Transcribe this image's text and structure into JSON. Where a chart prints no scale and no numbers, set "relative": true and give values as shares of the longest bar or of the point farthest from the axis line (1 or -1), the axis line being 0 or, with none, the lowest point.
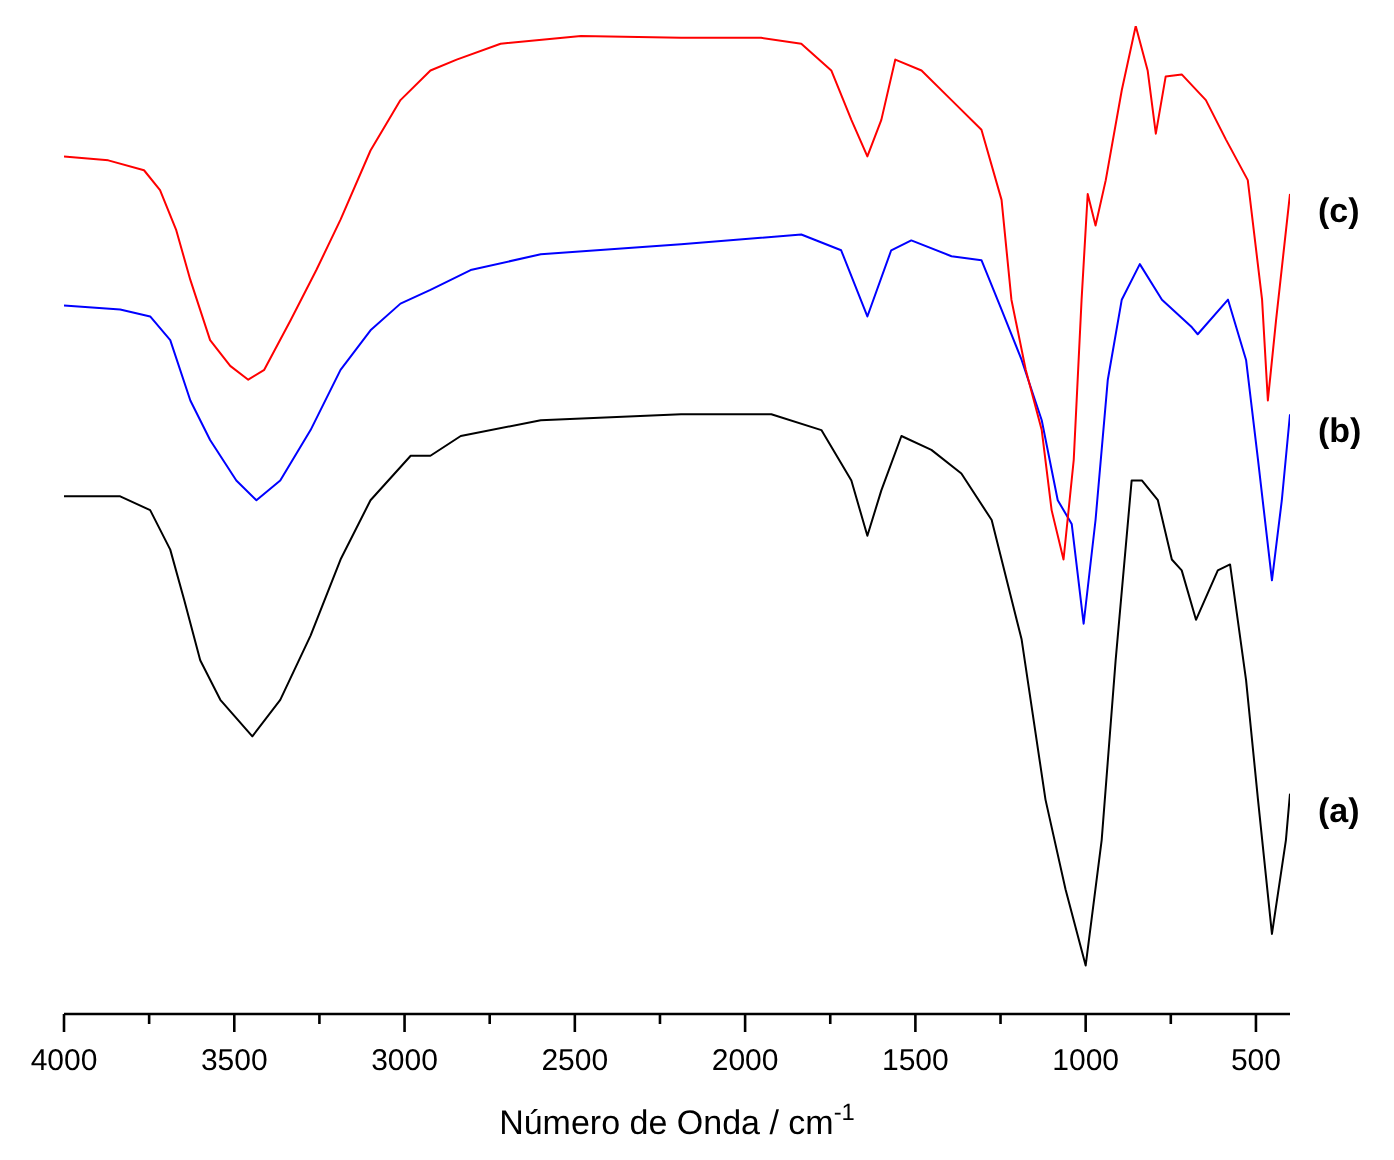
{
  "chart_data": {
    "type": "line",
    "relative": true,
    "xlabel": "Número de Onda / cm$^{-1}$",
    "xlim": [
      4000,
      400
    ],
    "xticks": [
      4000,
      {
        "value": 3750,
        "label": null
      },
      3500,
      {
        "value": 3250,
        "label": null
      },
      3000,
      {
        "value": 2750,
        "label": null
      },
      2500,
      {
        "value": 2250,
        "label": null
      },
      2000,
      {
        "value": 1750,
        "label": null
      },
      1500,
      {
        "value": 1250,
        "label": null
      },
      1000,
      {
        "value": 750,
        "label": null
      },
      500
    ],
    "series": [
      {
        "name": "(a)",
        "color": "#000000",
        "x": [
          4000,
          3835,
          3747,
          3688,
          3647,
          3600,
          3541,
          3447,
          3365,
          3276,
          3188,
          3100,
          2982,
          2924,
          2835,
          2600,
          2188,
          1923,
          1776,
          1688,
          1641,
          1600,
          1541,
          1453,
          1365,
          1276,
          1188,
          1118,
          1059,
          1000,
          953,
          912,
          865,
          835,
          788,
          747,
          718,
          676,
          612,
          576,
          529,
          494,
          453,
          412,
          400
        ],
        "values": [
          0.524,
          0.524,
          0.51,
          0.47,
          0.419,
          0.358,
          0.318,
          0.281,
          0.318,
          0.383,
          0.46,
          0.52,
          0.565,
          0.565,
          0.585,
          0.601,
          0.607,
          0.607,
          0.591,
          0.54,
          0.484,
          0.53,
          0.585,
          0.571,
          0.547,
          0.5,
          0.379,
          0.217,
          0.126,
          0.049,
          0.176,
          0.358,
          0.54,
          0.54,
          0.52,
          0.46,
          0.449,
          0.399,
          0.449,
          0.455,
          0.338,
          0.217,
          0.081,
          0.176,
          0.223
        ]
      },
      {
        "name": "(b)",
        "color": "#0000ff",
        "x": [
          4000,
          3835,
          3747,
          3688,
          3629,
          3571,
          3494,
          3435,
          3365,
          3276,
          3188,
          3100,
          3012,
          2924,
          2806,
          2600,
          2188,
          1835,
          1718,
          1641,
          1571,
          1512,
          1394,
          1306,
          1247,
          1188,
          1129,
          1082,
          1041,
          1006,
          971,
          935,
          894,
          841,
          776,
          688,
          671,
          582,
          529,
          494,
          453,
          424,
          400
        ],
        "values": [
          0.717,
          0.713,
          0.706,
          0.682,
          0.621,
          0.581,
          0.54,
          0.52,
          0.54,
          0.591,
          0.652,
          0.692,
          0.719,
          0.733,
          0.753,
          0.769,
          0.779,
          0.789,
          0.773,
          0.706,
          0.773,
          0.783,
          0.767,
          0.763,
          0.713,
          0.662,
          0.601,
          0.52,
          0.496,
          0.395,
          0.5,
          0.642,
          0.723,
          0.759,
          0.723,
          0.695,
          0.688,
          0.723,
          0.662,
          0.561,
          0.439,
          0.52,
          0.607
        ]
      },
      {
        "name": "(c)",
        "color": "#ff0000",
        "x": [
          4000,
          3870,
          3765,
          3718,
          3671,
          3629,
          3571,
          3512,
          3459,
          3412,
          3335,
          3259,
          3188,
          3100,
          3012,
          2924,
          2847,
          2718,
          2482,
          2188,
          1953,
          1835,
          1747,
          1688,
          1641,
          1600,
          1559,
          1482,
          1394,
          1306,
          1247,
          1218,
          1176,
          1129,
          1100,
          1065,
          1035,
          1012,
          994,
          971,
          941,
          894,
          853,
          818,
          794,
          765,
          718,
          647,
          588,
          524,
          482,
          465,
          441,
          400
        ],
        "values": [
          0.868,
          0.864,
          0.854,
          0.834,
          0.794,
          0.743,
          0.682,
          0.656,
          0.642,
          0.652,
          0.702,
          0.753,
          0.804,
          0.874,
          0.925,
          0.955,
          0.966,
          0.982,
          0.99,
          0.988,
          0.988,
          0.982,
          0.955,
          0.905,
          0.868,
          0.905,
          0.966,
          0.955,
          0.925,
          0.895,
          0.824,
          0.723,
          0.652,
          0.591,
          0.51,
          0.46,
          0.561,
          0.723,
          0.83,
          0.798,
          0.844,
          0.935,
          1,
          0.955,
          0.891,
          0.949,
          0.951,
          0.925,
          0.885,
          0.844,
          0.723,
          0.621,
          0.702,
          0.83
        ]
      }
    ]
  }
}
